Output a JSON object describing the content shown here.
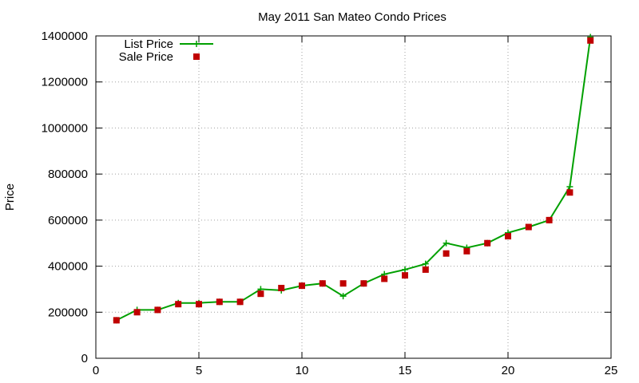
{
  "chart_data": {
    "type": "line",
    "title": "May 2011 San Mateo Condo Prices",
    "xlabel": "",
    "ylabel": "Price",
    "xlim": [
      0,
      25
    ],
    "ylim": [
      0,
      1400000
    ],
    "xticks": [
      0,
      5,
      10,
      15,
      20,
      25
    ],
    "yticks": [
      0,
      200000,
      400000,
      600000,
      800000,
      1000000,
      1200000,
      1400000
    ],
    "grid": true,
    "legend_position": "top-left",
    "x": [
      1,
      2,
      3,
      4,
      5,
      6,
      7,
      8,
      9,
      10,
      11,
      12,
      13,
      14,
      15,
      16,
      17,
      18,
      19,
      20,
      21,
      22,
      23,
      24
    ],
    "series": [
      {
        "name": "List Price",
        "style": "line-with-plus-markers",
        "color": "#00a000",
        "values": [
          165000,
          210000,
          210000,
          240000,
          240000,
          245000,
          245000,
          300000,
          295000,
          315000,
          325000,
          270000,
          325000,
          365000,
          385000,
          410000,
          500000,
          480000,
          500000,
          545000,
          570000,
          600000,
          745000,
          1395000
        ]
      },
      {
        "name": "Sale Price",
        "style": "square-markers",
        "color": "#c00000",
        "values": [
          165000,
          200000,
          210000,
          235000,
          235000,
          245000,
          245000,
          280000,
          305000,
          315000,
          325000,
          325000,
          325000,
          345000,
          360000,
          385000,
          455000,
          465000,
          500000,
          530000,
          570000,
          600000,
          720000,
          1380000
        ]
      }
    ]
  }
}
